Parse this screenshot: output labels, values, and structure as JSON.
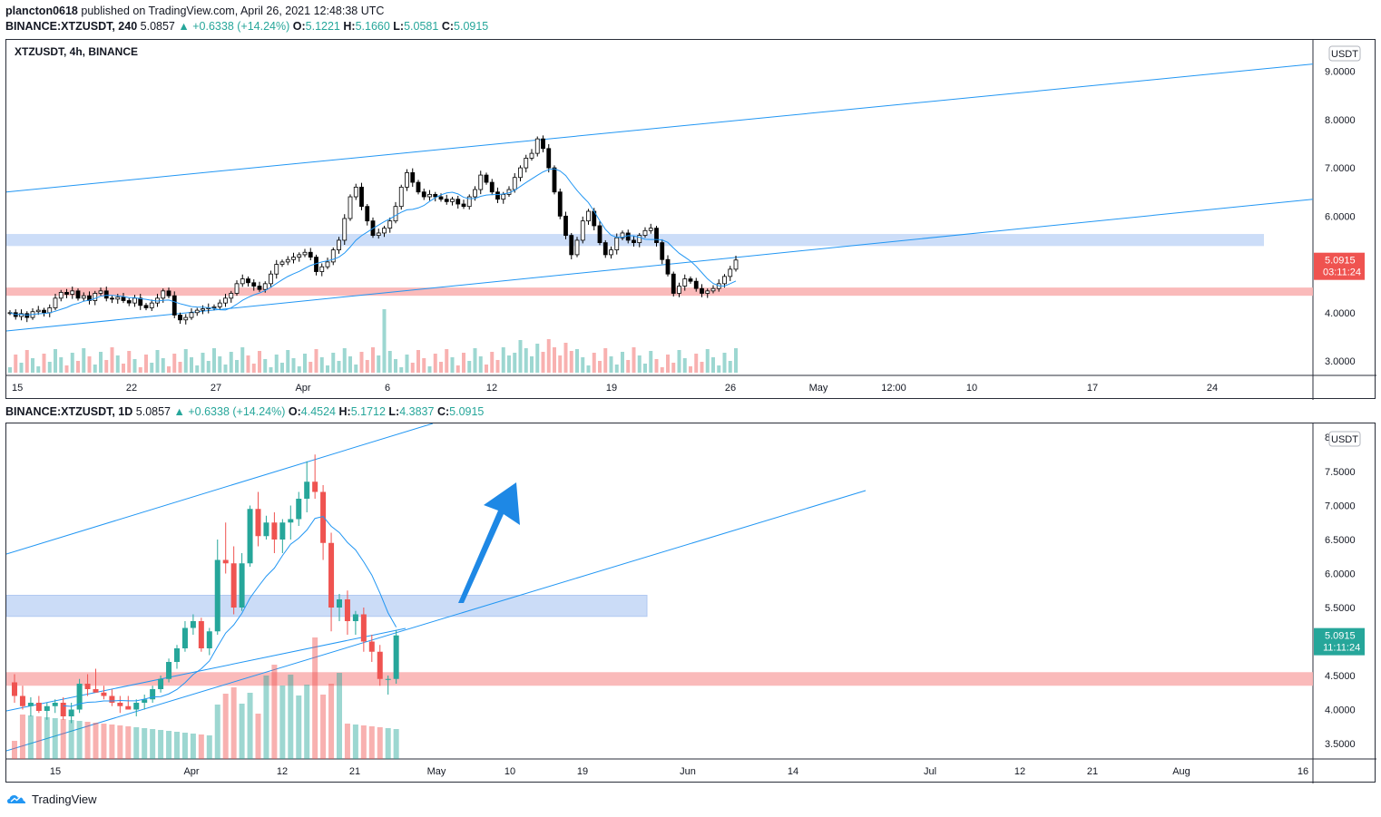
{
  "header": {
    "user": "plancton0618",
    "published_text": "published on TradingView.com, April 26, 2021 12:48:38 UTC"
  },
  "pane1": {
    "symbol": "BINANCE:XTZUSDT, 240",
    "price": "5.0857",
    "change": "+0.6338 (+14.24%)",
    "o_label": "O:",
    "o": "5.1221",
    "h_label": "H:",
    "h": "5.1660",
    "l_label": "L:",
    "l": "5.0581",
    "c_label": "C:",
    "c": "5.0915",
    "title": "XTZUSDT, 4h, BINANCE",
    "currency": "USDT",
    "price_tag": "5.0915",
    "countdown": "03:11:24",
    "y_ticks": [
      "9.0000",
      "8.0000",
      "7.0000",
      "6.0000",
      "4.0000",
      "3.0000"
    ],
    "x_ticks": [
      "15",
      "22",
      "27",
      "Apr",
      "6",
      "12",
      "19",
      "26",
      "May",
      "12:00",
      "10",
      "17",
      "24"
    ]
  },
  "pane2": {
    "symbol": "BINANCE:XTZUSDT, 1D",
    "price": "5.0857",
    "change": "+0.6338 (+14.24%)",
    "o_label": "O:",
    "o": "4.4524",
    "h_label": "H:",
    "h": "5.1712",
    "l_label": "L:",
    "l": "4.3837",
    "c_label": "C:",
    "c": "5.0915",
    "currency": "USDT",
    "price_tag": "5.0915",
    "countdown": "11:11:24",
    "y_ticks": [
      "7.5000",
      "7.0000",
      "6.5000",
      "6.0000",
      "5.5000",
      "4.5000",
      "4.0000",
      "3.5000"
    ],
    "y_top_partial": "8",
    "x_ticks": [
      "15",
      "Apr",
      "12",
      "21",
      "May",
      "10",
      "19",
      "Jun",
      "14",
      "Jul",
      "12",
      "21",
      "Aug",
      "16"
    ]
  },
  "footer": {
    "brand": "TradingView"
  },
  "colors": {
    "up": "#26a69a",
    "down": "#ef5350",
    "line": "#2196f3",
    "blue_zone": "#c6d9f7",
    "red_zone": "#f9b3b3",
    "candle_4h": "#000000"
  },
  "chart_data": [
    {
      "type": "candlestick",
      "title": "XTZUSDT, 4h, BINANCE",
      "timeframe": "4h",
      "ylabel": "USDT",
      "ylim": [
        2.7,
        9.5
      ],
      "zones": [
        {
          "color": "blue",
          "from": 5.38,
          "to": 5.63
        },
        {
          "color": "red",
          "from": 4.35,
          "to": 4.52
        }
      ],
      "trendlines": [
        {
          "from": [
            "Mar 14",
            6.5
          ],
          "to": [
            "May 29",
            9.15
          ]
        },
        {
          "from": [
            "Mar 14",
            3.62
          ],
          "to": [
            "May 29",
            6.35
          ]
        }
      ],
      "closes": [
        4.0,
        3.92,
        3.98,
        3.9,
        4.02,
        4.05,
        4.0,
        4.1,
        4.3,
        4.42,
        4.38,
        4.45,
        4.3,
        4.35,
        4.25,
        4.4,
        4.45,
        4.3,
        4.28,
        4.32,
        4.25,
        4.2,
        4.3,
        4.15,
        4.1,
        4.2,
        4.3,
        4.45,
        4.35,
        3.95,
        3.85,
        3.9,
        4.0,
        4.05,
        4.08,
        4.1,
        4.12,
        4.2,
        4.3,
        4.4,
        4.6,
        4.7,
        4.62,
        4.55,
        4.48,
        4.6,
        4.8,
        5.0,
        5.05,
        5.1,
        5.15,
        5.2,
        5.25,
        5.15,
        4.85,
        4.95,
        5.05,
        5.3,
        5.5,
        5.95,
        6.4,
        6.6,
        6.2,
        5.9,
        5.6,
        5.65,
        5.75,
        5.9,
        6.2,
        6.6,
        6.9,
        6.7,
        6.5,
        6.4,
        6.45,
        6.4,
        6.35,
        6.3,
        6.35,
        6.25,
        6.2,
        6.4,
        6.55,
        6.85,
        6.7,
        6.5,
        6.35,
        6.45,
        6.55,
        6.8,
        7.0,
        7.2,
        7.3,
        7.6,
        7.4,
        7.0,
        6.5,
        6.0,
        5.6,
        5.2,
        5.5,
        5.9,
        6.1,
        5.8,
        5.45,
        5.2,
        5.3,
        5.55,
        5.65,
        5.5,
        5.45,
        5.6,
        5.7,
        5.75,
        5.45,
        5.1,
        4.8,
        4.4,
        4.55,
        4.7,
        4.65,
        4.5,
        4.4,
        4.45,
        4.5,
        4.6,
        4.75,
        4.9,
        5.09
      ],
      "ma_label": "",
      "x_ticks": [
        "15",
        "22",
        "27",
        "Apr",
        "6",
        "12",
        "19",
        "26",
        "May",
        "12:00",
        "10",
        "17",
        "24"
      ]
    },
    {
      "type": "candlestick",
      "title": "",
      "timeframe": "1D",
      "ylabel": "USDT",
      "ylim": [
        3.3,
        8.05
      ],
      "zones": [
        {
          "color": "blue",
          "from": 5.37,
          "to": 5.68
        },
        {
          "color": "red",
          "from": 4.35,
          "to": 4.55
        }
      ],
      "trendlines": [
        {
          "from": [
            "Mar 07",
            4.25
          ],
          "to": [
            "May 30",
            7.2
          ]
        },
        {
          "from": [
            "Mar 07",
            3.8
          ],
          "to": [
            "Jun 25",
            7.2
          ]
        }
      ],
      "arrow": {
        "from": [
          "May 02",
          5.55
        ],
        "to": [
          "May 07",
          7.3
        ]
      },
      "ohlc": [
        [
          4.4,
          4.52,
          4.1,
          4.2
        ],
        [
          4.2,
          4.35,
          4.0,
          4.05
        ],
        [
          4.05,
          4.18,
          3.9,
          4.1
        ],
        [
          4.1,
          4.2,
          3.95,
          3.98
        ],
        [
          3.98,
          4.1,
          3.85,
          4.05
        ],
        [
          4.05,
          4.15,
          3.95,
          4.1
        ],
        [
          4.1,
          4.18,
          3.85,
          3.9
        ],
        [
          3.9,
          4.1,
          3.8,
          4.0
        ],
        [
          4.0,
          4.45,
          3.95,
          4.38
        ],
        [
          4.38,
          4.52,
          4.2,
          4.3
        ],
        [
          4.3,
          4.6,
          4.25,
          4.25
        ],
        [
          4.25,
          4.35,
          4.15,
          4.2
        ],
        [
          4.2,
          4.3,
          4.05,
          4.1
        ],
        [
          4.1,
          4.2,
          3.95,
          4.05
        ],
        [
          4.05,
          4.2,
          4.0,
          4.0
        ],
        [
          4.0,
          4.15,
          3.9,
          4.1
        ],
        [
          4.1,
          4.22,
          4.0,
          4.15
        ],
        [
          4.15,
          4.35,
          4.1,
          4.3
        ],
        [
          4.3,
          4.5,
          4.25,
          4.45
        ],
        [
          4.45,
          4.75,
          4.4,
          4.7
        ],
        [
          4.7,
          4.95,
          4.6,
          4.9
        ],
        [
          4.9,
          5.3,
          4.85,
          5.2
        ],
        [
          5.2,
          5.4,
          5.1,
          5.3
        ],
        [
          5.3,
          5.35,
          4.85,
          4.9
        ],
        [
          4.9,
          5.2,
          4.8,
          5.15
        ],
        [
          5.15,
          6.5,
          5.1,
          6.2
        ],
        [
          6.2,
          6.75,
          6.0,
          6.15
        ],
        [
          6.15,
          6.4,
          5.4,
          5.5
        ],
        [
          5.5,
          6.3,
          5.45,
          6.15
        ],
        [
          6.15,
          7.0,
          6.1,
          6.95
        ],
        [
          6.95,
          7.2,
          6.4,
          6.55
        ],
        [
          6.55,
          6.85,
          6.5,
          6.75
        ],
        [
          6.75,
          6.9,
          6.3,
          6.5
        ],
        [
          6.5,
          6.8,
          6.3,
          6.75
        ],
        [
          6.75,
          7.0,
          6.5,
          6.8
        ],
        [
          6.8,
          7.2,
          6.7,
          7.1
        ],
        [
          7.1,
          7.65,
          6.9,
          7.35
        ],
        [
          7.35,
          7.75,
          7.1,
          7.2
        ],
        [
          7.2,
          7.3,
          6.2,
          6.45
        ],
        [
          6.45,
          6.6,
          5.15,
          5.5
        ],
        [
          5.5,
          5.7,
          5.3,
          5.62
        ],
        [
          5.62,
          5.75,
          5.1,
          5.3
        ],
        [
          5.3,
          5.45,
          5.1,
          5.4
        ],
        [
          5.4,
          5.5,
          4.85,
          5.0
        ],
        [
          5.0,
          5.1,
          4.7,
          4.85
        ],
        [
          4.85,
          4.95,
          4.35,
          4.45
        ],
        [
          4.45,
          4.5,
          4.22,
          4.45
        ],
        [
          4.45,
          5.17,
          4.38,
          5.09
        ]
      ],
      "x_ticks": [
        "15",
        "Apr",
        "12",
        "21",
        "May",
        "10",
        "19",
        "Jun",
        "14",
        "Jul",
        "12",
        "21",
        "Aug",
        "16"
      ]
    }
  ]
}
